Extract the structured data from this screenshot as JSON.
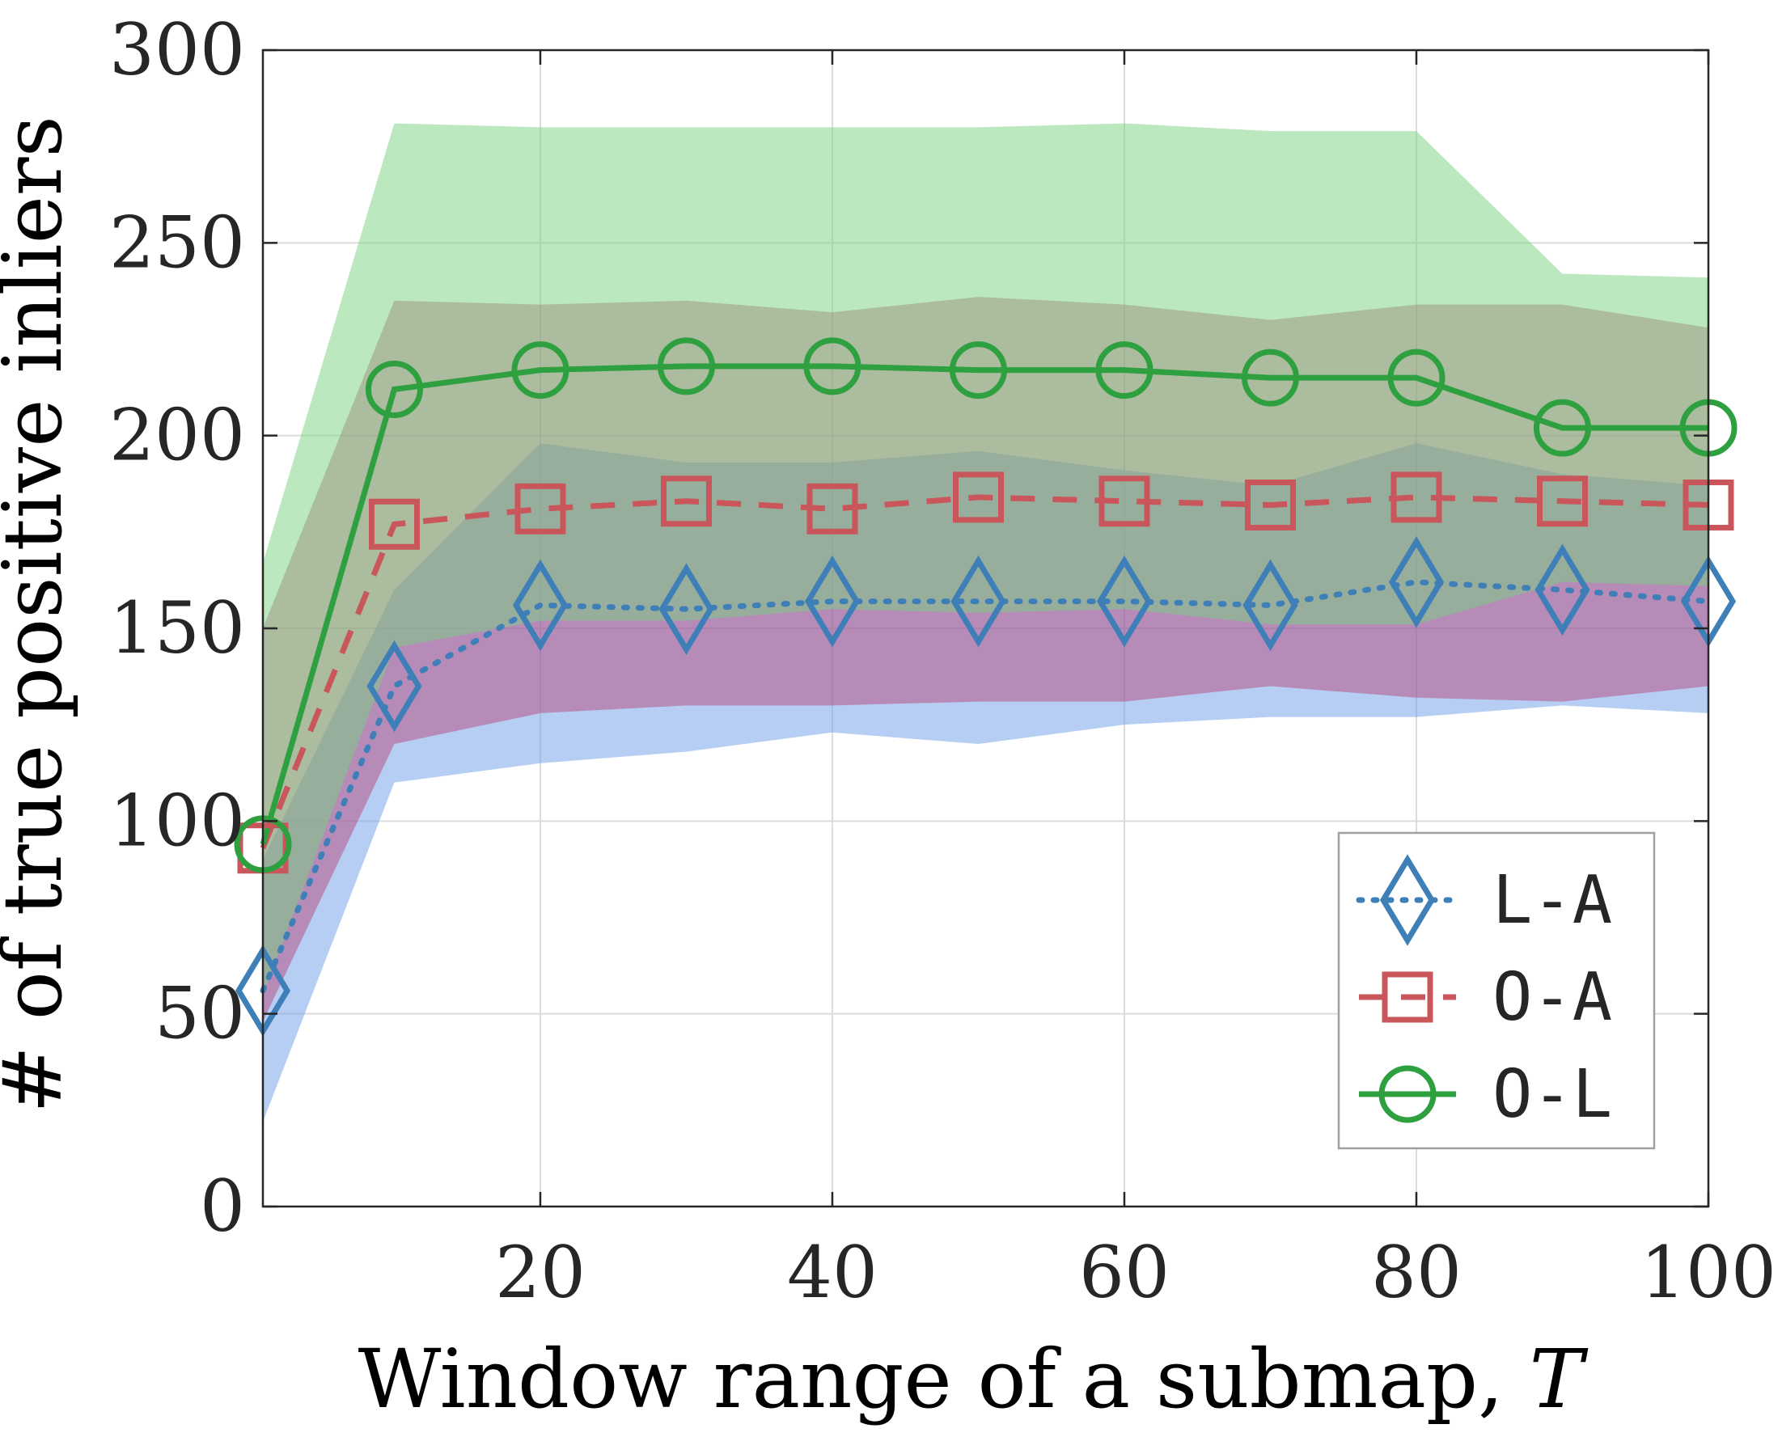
{
  "chart_data": {
    "type": "line",
    "xlabel": "Window range of a submap, ",
    "xlabel_var": "T",
    "ylabel": "# of true positive inliers",
    "xlim": [
      1,
      100
    ],
    "ylim": [
      0,
      300
    ],
    "xticks": [
      20,
      40,
      60,
      80,
      100
    ],
    "yticks": [
      0,
      50,
      100,
      150,
      200,
      250,
      300
    ],
    "grid": true,
    "legend_position": "bottom-right",
    "x": [
      1,
      10,
      20,
      30,
      40,
      50,
      60,
      70,
      80,
      90,
      100
    ],
    "series": [
      {
        "name": "L-A",
        "color": "#3f7fb8",
        "band_color": "#6d9ee8",
        "line_style": "dotted",
        "marker": "diamond",
        "values": [
          56,
          135,
          156,
          155,
          157,
          157,
          157,
          156,
          162,
          160,
          157
        ],
        "lower": [
          22,
          110,
          115,
          118,
          123,
          120,
          125,
          127,
          127,
          130,
          128
        ],
        "upper": [
          90,
          160,
          198,
          193,
          193,
          196,
          191,
          187,
          198,
          190,
          187
        ]
      },
      {
        "name": "O-A",
        "color": "#c8565a",
        "band_color": "#b73a72",
        "line_style": "dashed",
        "marker": "square",
        "values": [
          93,
          177,
          181,
          183,
          181,
          184,
          183,
          182,
          184,
          183,
          182
        ],
        "lower": [
          48,
          120,
          128,
          130,
          130,
          131,
          131,
          135,
          132,
          131,
          135
        ],
        "upper": [
          150,
          235,
          234,
          235,
          232,
          236,
          234,
          230,
          234,
          234,
          228
        ]
      },
      {
        "name": "O-L",
        "color": "#2ea040",
        "band_color": "#77d17f",
        "line_style": "solid",
        "marker": "circle",
        "values": [
          94,
          212,
          217,
          218,
          218,
          217,
          217,
          215,
          215,
          202,
          202
        ],
        "lower": [
          55,
          145,
          152,
          152,
          155,
          154,
          155,
          151,
          151,
          162,
          161
        ],
        "upper": [
          167,
          281,
          280,
          280,
          280,
          280,
          281,
          279,
          279,
          242,
          241
        ]
      }
    ]
  }
}
